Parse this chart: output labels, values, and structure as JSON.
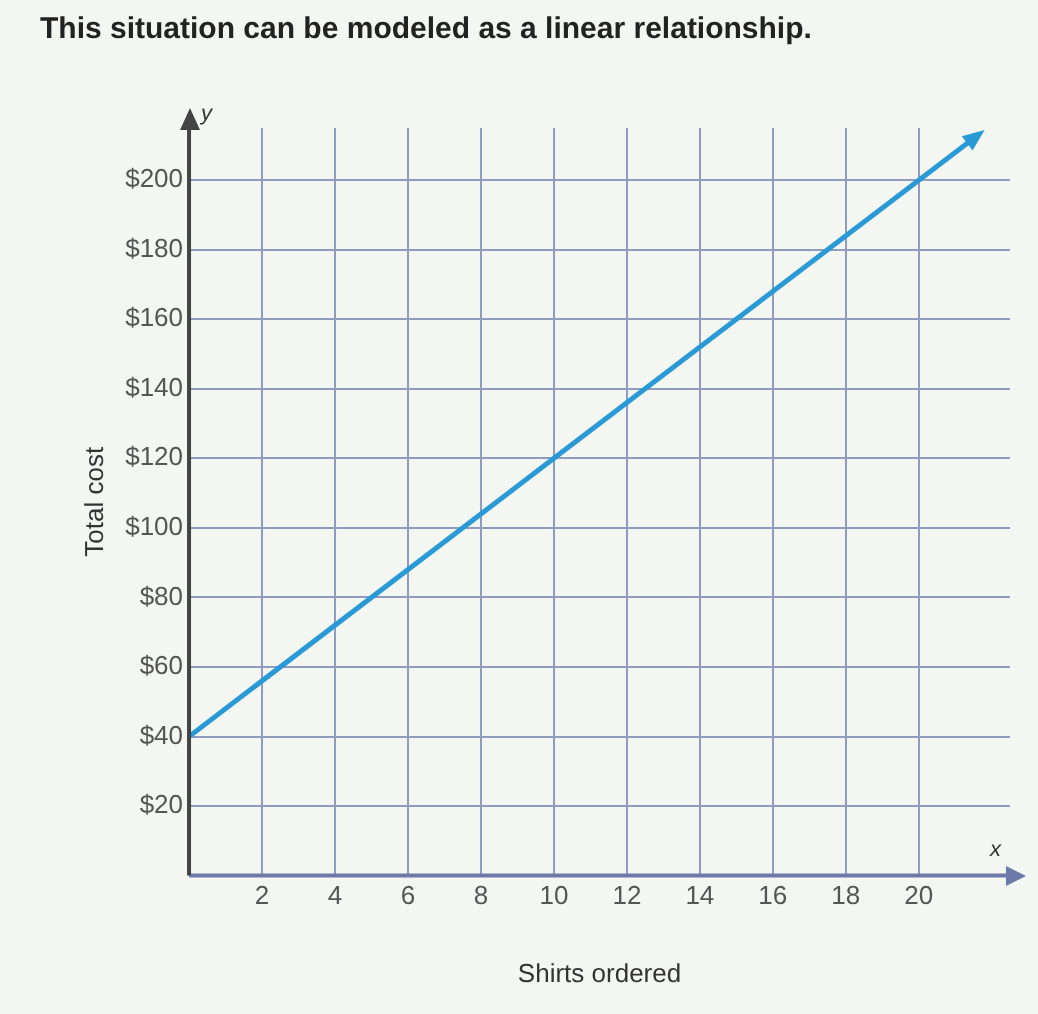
{
  "chart_data": {
    "type": "line",
    "title": "This situation can be modeled as a linear relationship.",
    "xlabel": "Shirts ordered",
    "ylabel": "Total cost",
    "annotations": [
      "y",
      "x"
    ],
    "x": [
      0,
      10,
      20,
      21.5
    ],
    "series": [
      {
        "color": "#2a9ad6",
        "values": [
          40,
          120,
          200,
          212
        ]
      }
    ],
    "xlim": [
      0,
      22.5
    ],
    "ylim": [
      0,
      215
    ],
    "xticks": [
      2,
      4,
      6,
      8,
      10,
      12,
      14,
      16,
      18,
      20
    ],
    "yticks": [
      {
        "value": 20,
        "label": "$20"
      },
      {
        "value": 40,
        "label": "$40"
      },
      {
        "value": 60,
        "label": "$60"
      },
      {
        "value": 80,
        "label": "$80"
      },
      {
        "value": 100,
        "label": "$100"
      },
      {
        "value": 120,
        "label": "$120"
      },
      {
        "value": 140,
        "label": "$140"
      },
      {
        "value": 160,
        "label": "$160"
      },
      {
        "value": 180,
        "label": "$180"
      },
      {
        "value": 200,
        "label": "$200"
      }
    ],
    "grid": true,
    "marker": "none",
    "line_style": "solid",
    "legend": false
  }
}
